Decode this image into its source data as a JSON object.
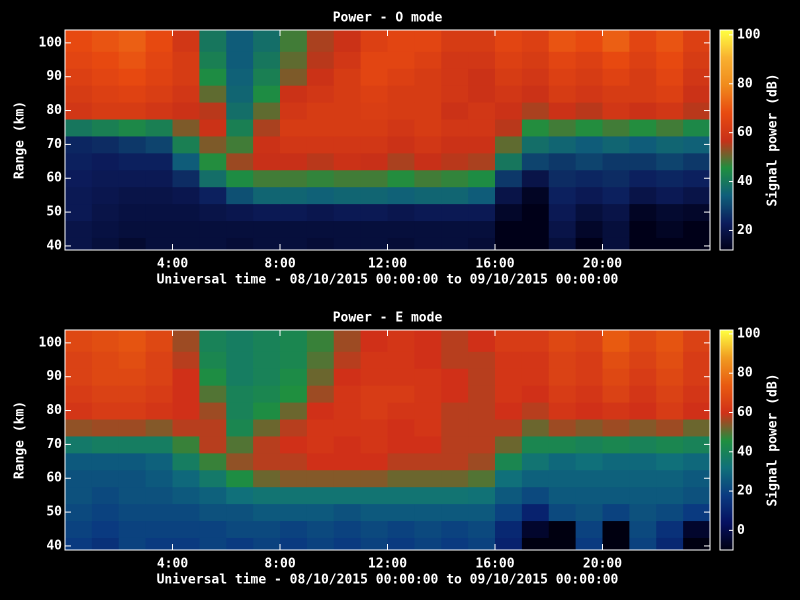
{
  "chart_data": [
    {
      "type": "heatmap",
      "title": "Power - O mode",
      "xlabel": "Universal time - 08/10/2015 00:00:00 to 09/10/2015 00:00:00",
      "ylabel": "Range (km)",
      "zlabel": "Signal power (dB)",
      "x": [
        0.5,
        1.5,
        2.5,
        3.5,
        4.5,
        5.5,
        6.5,
        7.5,
        8.5,
        9.5,
        10.5,
        11.5,
        12.5,
        13.5,
        14.5,
        15.5,
        16.5,
        17.5,
        18.5,
        19.5,
        20.5,
        21.5,
        22.5,
        23.5
      ],
      "y": [
        40,
        45,
        50,
        55,
        60,
        65,
        70,
        75,
        80,
        85,
        90,
        95,
        100
      ],
      "values": [
        [
          20,
          18,
          16,
          18,
          18,
          18,
          17,
          18,
          18,
          17,
          18,
          18,
          17,
          18,
          18,
          17,
          10,
          10,
          18,
          12,
          18,
          10,
          12,
          10
        ],
        [
          20,
          19,
          18,
          18,
          18,
          18,
          18,
          18,
          18,
          18,
          18,
          18,
          18,
          18,
          18,
          18,
          12,
          10,
          20,
          15,
          18,
          12,
          14,
          12
        ],
        [
          22,
          20,
          19,
          19,
          19,
          20,
          21,
          22,
          22,
          21,
          22,
          22,
          21,
          22,
          22,
          22,
          15,
          10,
          22,
          18,
          20,
          14,
          16,
          15
        ],
        [
          22,
          21,
          20,
          20,
          21,
          24,
          32,
          36,
          36,
          35,
          36,
          36,
          35,
          36,
          36,
          34,
          20,
          14,
          24,
          22,
          24,
          20,
          22,
          20
        ],
        [
          23,
          22,
          22,
          22,
          26,
          38,
          45,
          48,
          48,
          47,
          48,
          48,
          46,
          48,
          47,
          45,
          28,
          20,
          26,
          25,
          26,
          24,
          25,
          24
        ],
        [
          24,
          23,
          24,
          24,
          34,
          46,
          54,
          57,
          57,
          56,
          58,
          57,
          55,
          57,
          56,
          55,
          40,
          30,
          28,
          30,
          28,
          28,
          30,
          28
        ],
        [
          25,
          26,
          28,
          30,
          42,
          52,
          48,
          58,
          60,
          60,
          60,
          60,
          58,
          60,
          58,
          58,
          50,
          38,
          36,
          34,
          36,
          34,
          36,
          35
        ],
        [
          40,
          42,
          44,
          42,
          52,
          58,
          42,
          55,
          62,
          62,
          62,
          62,
          60,
          62,
          60,
          60,
          56,
          46,
          48,
          46,
          48,
          46,
          48,
          44
        ],
        [
          60,
          62,
          62,
          60,
          58,
          56,
          38,
          50,
          60,
          62,
          62,
          63,
          62,
          62,
          58,
          60,
          58,
          55,
          58,
          56,
          60,
          58,
          60,
          56
        ],
        [
          62,
          64,
          65,
          63,
          60,
          50,
          36,
          45,
          58,
          60,
          62,
          64,
          62,
          62,
          60,
          58,
          60,
          58,
          62,
          60,
          62,
          62,
          64,
          58
        ],
        [
          64,
          66,
          68,
          65,
          62,
          45,
          35,
          42,
          52,
          58,
          62,
          66,
          64,
          62,
          60,
          58,
          62,
          60,
          64,
          62,
          65,
          62,
          66,
          60
        ],
        [
          66,
          68,
          70,
          66,
          62,
          42,
          34,
          40,
          50,
          56,
          60,
          66,
          66,
          64,
          60,
          60,
          64,
          62,
          66,
          64,
          68,
          64,
          68,
          62
        ],
        [
          68,
          70,
          72,
          68,
          60,
          40,
          34,
          38,
          48,
          55,
          58,
          64,
          66,
          66,
          62,
          62,
          66,
          64,
          70,
          68,
          72,
          66,
          70,
          64
        ]
      ],
      "xlim": [
        0,
        24
      ],
      "xticks": [
        {
          "value": 4,
          "label": "4:00"
        },
        {
          "value": 8,
          "label": "8:00"
        },
        {
          "value": 12,
          "label": "12:00"
        },
        {
          "value": 16,
          "label": "16:00"
        },
        {
          "value": 20,
          "label": "20:00"
        }
      ],
      "ylim": [
        38.8,
        103.8
      ],
      "yticks": [
        40,
        50,
        60,
        70,
        80,
        90,
        100
      ],
      "zlim": [
        12,
        102
      ],
      "zticks": [
        20,
        40,
        60,
        80,
        100
      ],
      "colormap": [
        "#000018",
        "#0c1c5c",
        "#0f5f7a",
        "#1f8f3f",
        "#c83018",
        "#e84a10",
        "#f08a1c",
        "#f8b030",
        "#ffff40"
      ]
    },
    {
      "type": "heatmap",
      "title": "Power - E mode",
      "xlabel": "Universal time - 08/10/2015 00:00:00 to 09/10/2015 00:00:00",
      "ylabel": "Range (km)",
      "zlabel": "Signal power (dB)",
      "x": [
        0.5,
        1.5,
        2.5,
        3.5,
        4.5,
        5.5,
        6.5,
        7.5,
        8.5,
        9.5,
        10.5,
        11.5,
        12.5,
        13.5,
        14.5,
        15.5,
        16.5,
        17.5,
        18.5,
        19.5,
        20.5,
        21.5,
        22.5,
        23.5
      ],
      "y": [
        40,
        45,
        50,
        55,
        60,
        65,
        70,
        75,
        80,
        85,
        90,
        95,
        100
      ],
      "values": [
        [
          18,
          15,
          20,
          18,
          18,
          20,
          18,
          20,
          18,
          20,
          18,
          20,
          18,
          20,
          18,
          20,
          10,
          -10,
          -10,
          18,
          -10,
          20,
          12,
          -10
        ],
        [
          20,
          18,
          20,
          20,
          20,
          20,
          22,
          22,
          20,
          22,
          20,
          22,
          20,
          22,
          20,
          22,
          12,
          -5,
          -10,
          20,
          -10,
          22,
          15,
          -5
        ],
        [
          22,
          20,
          22,
          22,
          22,
          24,
          24,
          26,
          26,
          26,
          24,
          26,
          26,
          26,
          26,
          26,
          20,
          10,
          22,
          24,
          20,
          24,
          22,
          18
        ],
        [
          24,
          22,
          24,
          24,
          26,
          28,
          32,
          34,
          34,
          34,
          34,
          34,
          34,
          34,
          34,
          33,
          26,
          22,
          26,
          26,
          26,
          26,
          26,
          24
        ],
        [
          24,
          24,
          24,
          26,
          30,
          36,
          45,
          52,
          54,
          54,
          54,
          54,
          52,
          52,
          52,
          50,
          32,
          28,
          28,
          28,
          28,
          28,
          28,
          26
        ],
        [
          26,
          26,
          26,
          28,
          38,
          48,
          55,
          58,
          58,
          60,
          60,
          60,
          58,
          58,
          58,
          56,
          42,
          34,
          30,
          32,
          30,
          30,
          32,
          30
        ],
        [
          36,
          38,
          38,
          38,
          48,
          58,
          50,
          58,
          60,
          62,
          60,
          62,
          60,
          60,
          58,
          58,
          52,
          42,
          42,
          40,
          42,
          40,
          42,
          40
        ],
        [
          55,
          56,
          56,
          54,
          58,
          58,
          42,
          52,
          58,
          62,
          62,
          62,
          60,
          62,
          58,
          58,
          58,
          52,
          56,
          54,
          56,
          54,
          56,
          52
        ],
        [
          62,
          64,
          64,
          62,
          60,
          56,
          40,
          45,
          52,
          60,
          62,
          64,
          62,
          62,
          58,
          58,
          60,
          58,
          62,
          60,
          62,
          60,
          64,
          60
        ],
        [
          64,
          66,
          66,
          64,
          60,
          50,
          40,
          42,
          46,
          56,
          62,
          64,
          64,
          62,
          60,
          58,
          62,
          60,
          64,
          62,
          66,
          62,
          66,
          62
        ],
        [
          66,
          68,
          68,
          66,
          60,
          45,
          38,
          40,
          44,
          52,
          60,
          62,
          62,
          62,
          60,
          58,
          62,
          62,
          66,
          64,
          68,
          64,
          68,
          64
        ],
        [
          66,
          68,
          70,
          66,
          58,
          42,
          38,
          40,
          42,
          50,
          58,
          62,
          62,
          60,
          58,
          58,
          62,
          62,
          66,
          64,
          70,
          66,
          70,
          64
        ],
        [
          68,
          70,
          72,
          68,
          56,
          40,
          38,
          40,
          42,
          48,
          56,
          60,
          62,
          60,
          58,
          60,
          64,
          64,
          68,
          66,
          74,
          68,
          72,
          66
        ]
      ],
      "xlim": [
        0,
        24
      ],
      "xticks": [
        {
          "value": 4,
          "label": "4:00"
        },
        {
          "value": 8,
          "label": "8:00"
        },
        {
          "value": 12,
          "label": "12:00"
        },
        {
          "value": 16,
          "label": "16:00"
        },
        {
          "value": 20,
          "label": "20:00"
        }
      ],
      "ylim": [
        38.8,
        103.8
      ],
      "yticks": [
        40,
        50,
        60,
        70,
        80,
        90,
        100
      ],
      "zlim": [
        -10,
        102
      ],
      "zticks": [
        0,
        20,
        40,
        60,
        80,
        100
      ],
      "colormap": [
        "#000010",
        "#061060",
        "#0a3a80",
        "#10707a",
        "#1f8f3f",
        "#d03018",
        "#e85a10",
        "#f09a20",
        "#ffff40"
      ]
    }
  ]
}
